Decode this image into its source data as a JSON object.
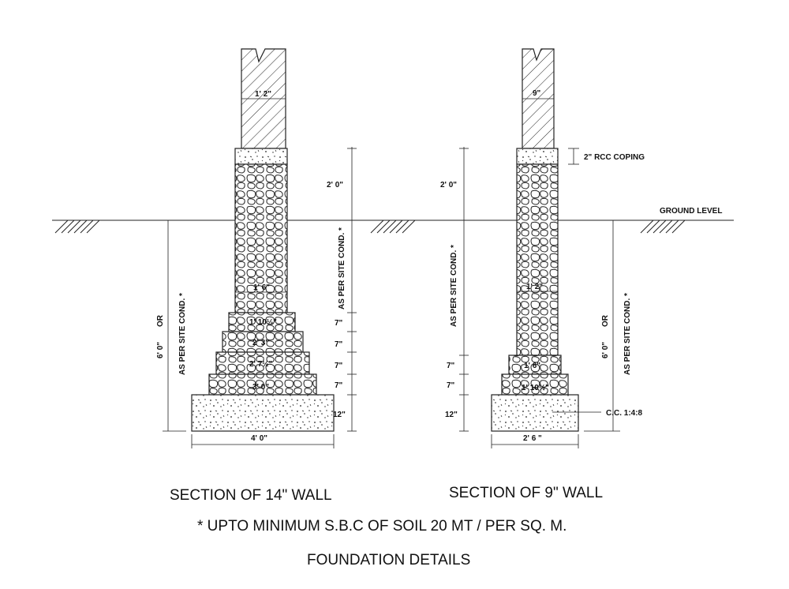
{
  "ground_level": "GROUND LEVEL",
  "section14": {
    "wall_width": "1' 2\"",
    "above_ground": "2' 0\"",
    "below_ground": "AS PER SITE COND. *",
    "left_depth_a": "6' 0\"",
    "left_depth_or": "OR",
    "left_depth_b": "AS PER SITE COND. *",
    "steps": [
      "1' 6\"",
      "1' 10½\"",
      "2' 3\"",
      "2' 7½\"",
      "3' 0\""
    ],
    "step_heights": [
      "7\"",
      "7\"",
      "7\"",
      "7\""
    ],
    "pcc_height": "12\"",
    "pcc_width": "4' 0\"",
    "caption": "SECTION OF 14\" WALL"
  },
  "section9": {
    "wall_width": "9\"",
    "coping": "2\" RCC COPING",
    "above_ground": "2' 0\"",
    "below_ground": "AS PER SITE COND. *",
    "right_depth_a": "6' 0\"",
    "right_depth_or": "OR",
    "right_depth_b": "AS PER SITE COND. *",
    "steps": [
      "1' 2\"",
      "1' 6\"",
      "1' 10½\""
    ],
    "step_heights": [
      "7\"",
      "7\""
    ],
    "pcc_height": "12\"",
    "pcc_label": "C.C. 1:4:8",
    "pcc_width": "2' 6 \"",
    "caption": "SECTION OF 9\" WALL"
  },
  "note": "* UPTO MINIMUM S.B.C OF SOIL 20 MT / PER SQ. M.",
  "title": "FOUNDATION DETAILS"
}
